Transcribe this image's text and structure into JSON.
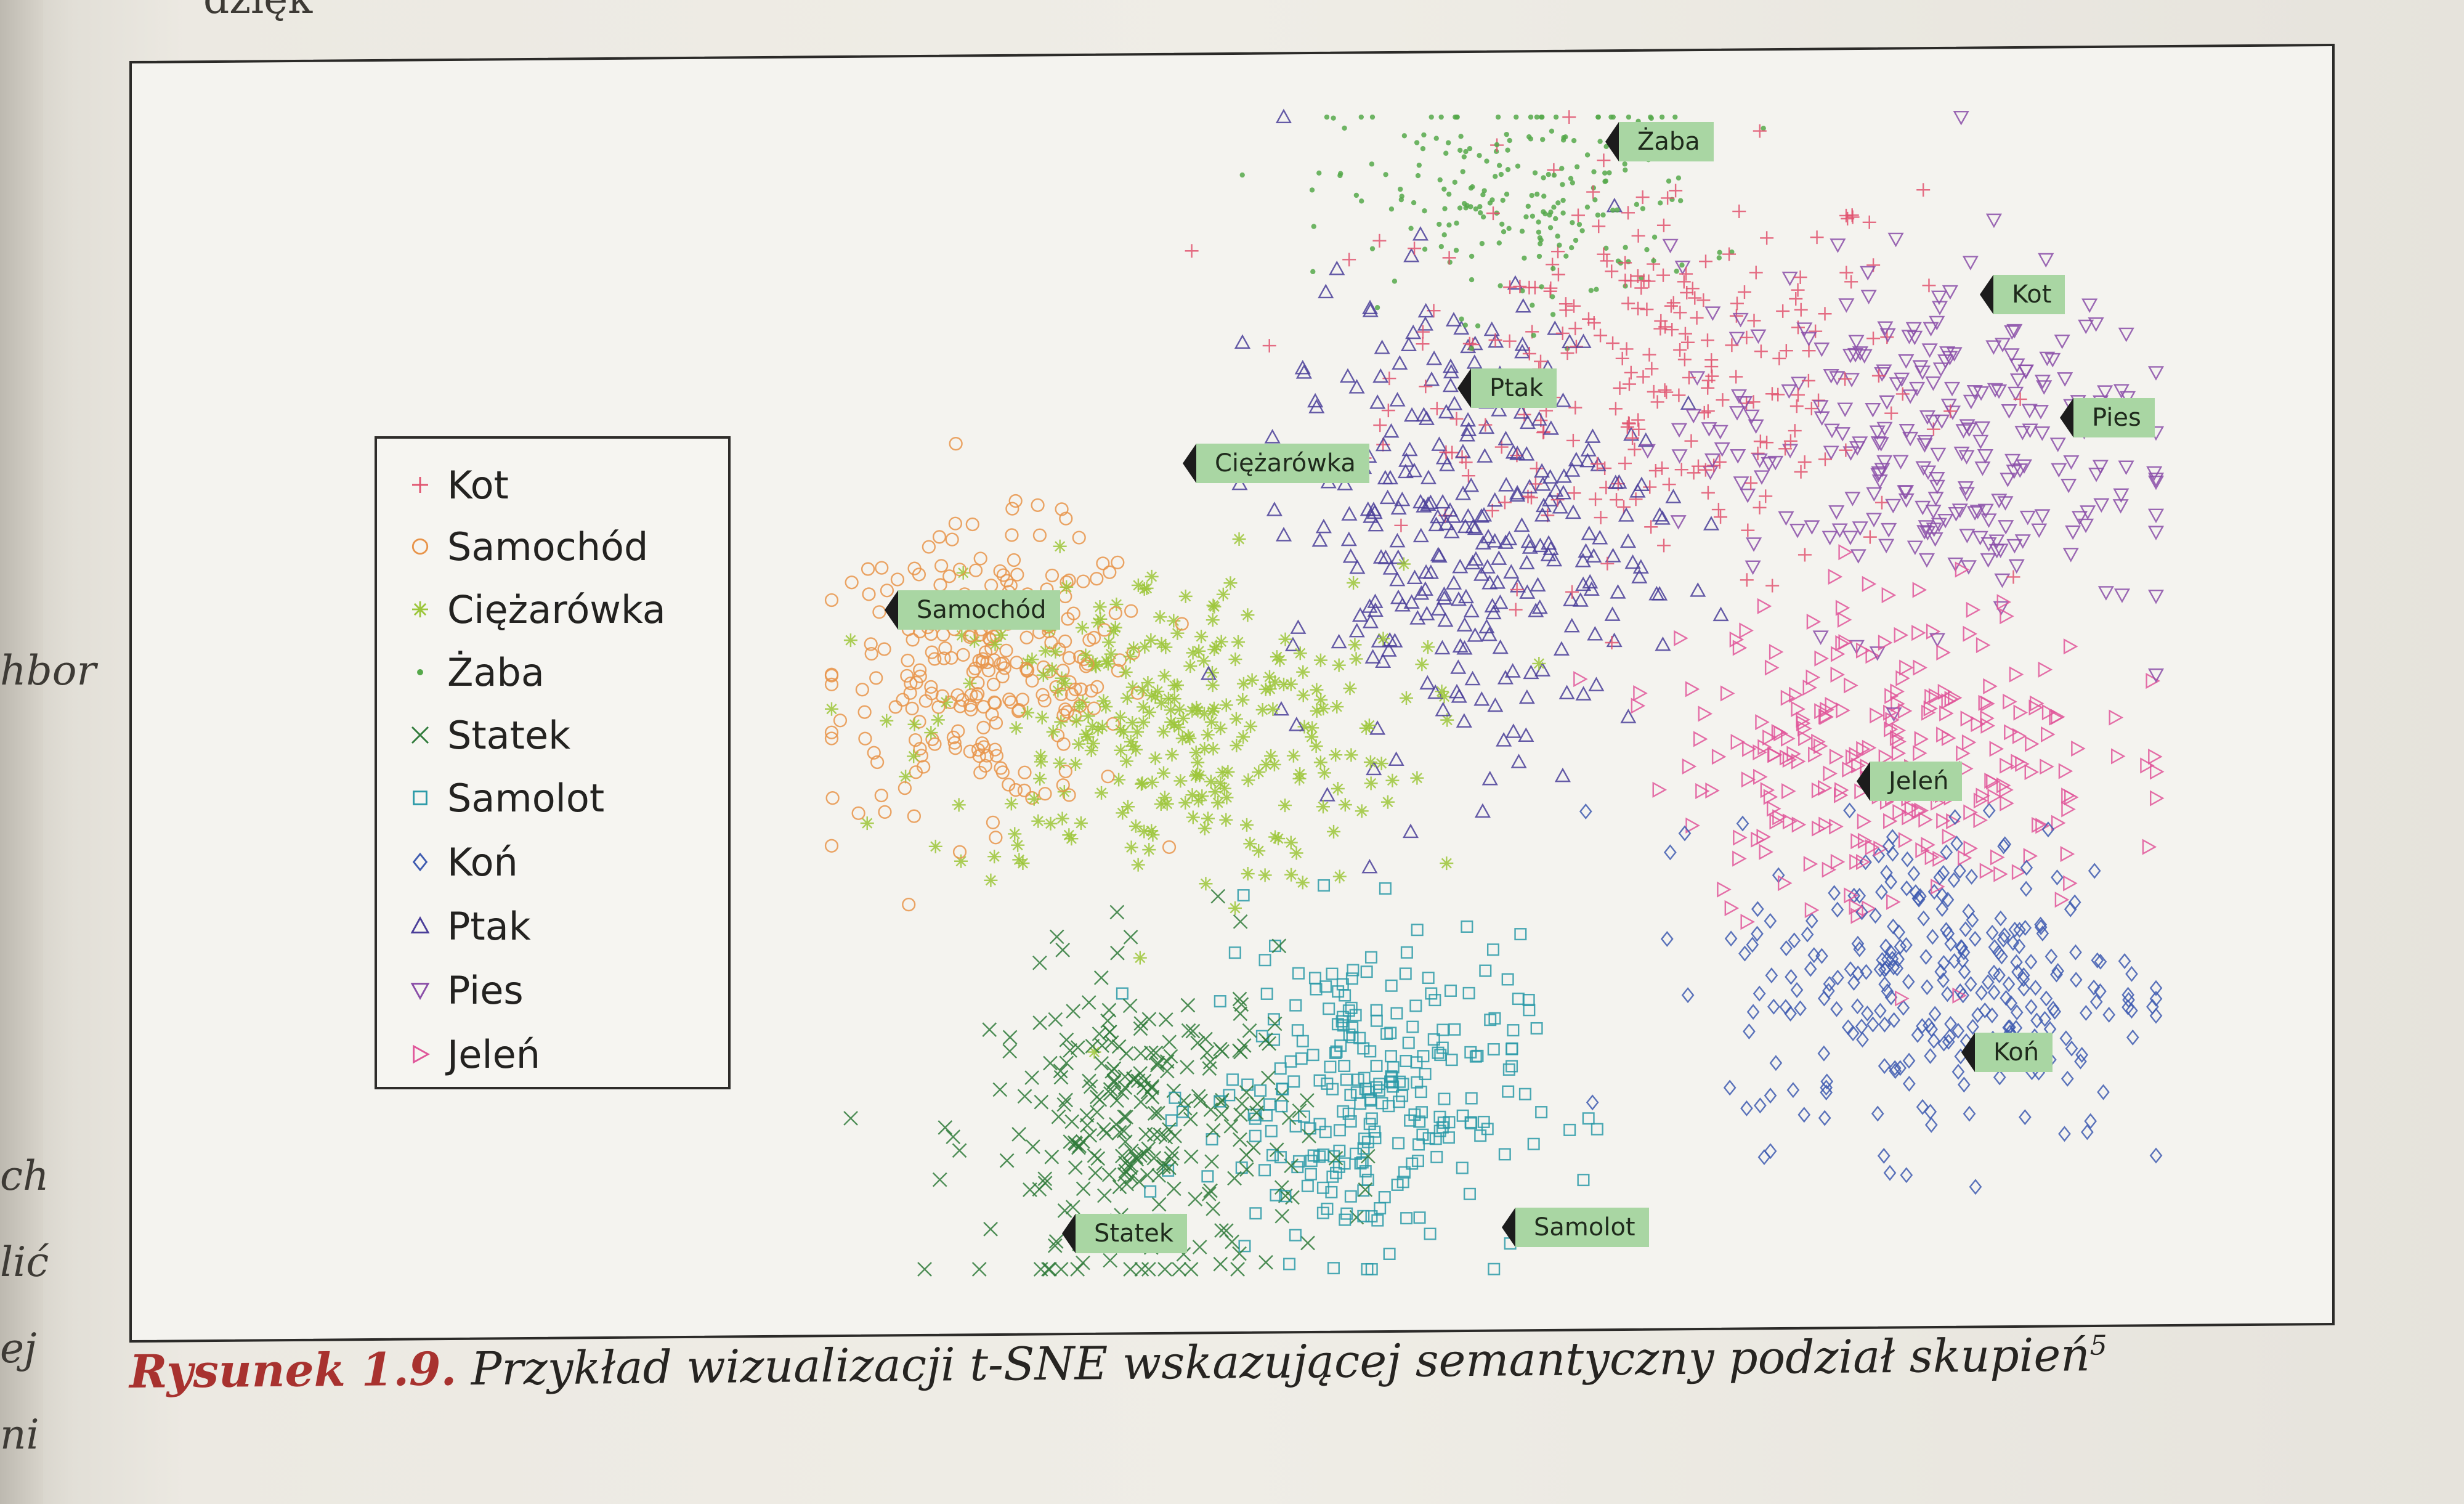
{
  "page": {
    "top_fragment": "dzięk",
    "margin_texts": [
      "hbor",
      "ch",
      "lić",
      "ej",
      "ni"
    ]
  },
  "legend": {
    "items": [
      {
        "label": "Kot",
        "marker": "plus",
        "color": "#e0526e"
      },
      {
        "label": "Samochód",
        "marker": "circle",
        "color": "#e8944a"
      },
      {
        "label": "Ciężarówka",
        "marker": "asterisk",
        "color": "#9cc63a"
      },
      {
        "label": "Żaba",
        "marker": "dot",
        "color": "#55a84a"
      },
      {
        "label": "Statek",
        "marker": "x",
        "color": "#2f7a3a"
      },
      {
        "label": "Samolot",
        "marker": "square",
        "color": "#2b9aa8"
      },
      {
        "label": "Koń",
        "marker": "diamond",
        "color": "#3e5bb0"
      },
      {
        "label": "Ptak",
        "marker": "triangle-up",
        "color": "#4a3e99"
      },
      {
        "label": "Pies",
        "marker": "triangle-down",
        "color": "#8a4ea8"
      },
      {
        "label": "Jeleń",
        "marker": "triangle-right",
        "color": "#e0569a"
      }
    ]
  },
  "chart_data": {
    "type": "scatter",
    "title": "",
    "xlabel": "",
    "ylabel": "",
    "grid": false,
    "legend_position": "left",
    "series": [
      {
        "name": "Kot",
        "marker": "plus",
        "color": "#e0526e",
        "cluster_center": [
          0.62,
          0.78
        ],
        "spread": [
          0.1,
          0.09
        ],
        "n": 260
      },
      {
        "name": "Samochód",
        "marker": "circle",
        "color": "#e8944a",
        "cluster_center": [
          0.12,
          0.52
        ],
        "spread": [
          0.06,
          0.06
        ],
        "n": 260
      },
      {
        "name": "Ciężarówka",
        "marker": "asterisk",
        "color": "#9cc63a",
        "cluster_center": [
          0.25,
          0.47
        ],
        "spread": [
          0.09,
          0.07
        ],
        "n": 300
      },
      {
        "name": "Żaba",
        "marker": "dot",
        "color": "#55a84a",
        "cluster_center": [
          0.52,
          0.93
        ],
        "spread": [
          0.07,
          0.05
        ],
        "n": 220
      },
      {
        "name": "Statek",
        "marker": "x",
        "color": "#2f7a3a",
        "cluster_center": [
          0.24,
          0.12
        ],
        "spread": [
          0.06,
          0.07
        ],
        "n": 260
      },
      {
        "name": "Samolot",
        "marker": "square",
        "color": "#2b9aa8",
        "cluster_center": [
          0.4,
          0.15
        ],
        "spread": [
          0.06,
          0.07
        ],
        "n": 260
      },
      {
        "name": "Koń",
        "marker": "diamond",
        "color": "#3e5bb0",
        "cluster_center": [
          0.84,
          0.25
        ],
        "spread": [
          0.08,
          0.07
        ],
        "n": 280
      },
      {
        "name": "Ptak",
        "marker": "triangle-up",
        "color": "#4a3e99",
        "cluster_center": [
          0.48,
          0.65
        ],
        "spread": [
          0.07,
          0.1
        ],
        "n": 300
      },
      {
        "name": "Pies",
        "marker": "triangle-down",
        "color": "#8a4ea8",
        "cluster_center": [
          0.82,
          0.72
        ],
        "spread": [
          0.09,
          0.08
        ],
        "n": 260
      },
      {
        "name": "Jeleń",
        "marker": "triangle-right",
        "color": "#e0569a",
        "cluster_center": [
          0.8,
          0.45
        ],
        "spread": [
          0.08,
          0.07
        ],
        "n": 260
      }
    ],
    "cluster_labels": [
      {
        "label": "Żaba",
        "series": "Żaba"
      },
      {
        "label": "Kot",
        "series": "Kot"
      },
      {
        "label": "Ptak",
        "series": "Ptak"
      },
      {
        "label": "Pies",
        "series": "Pies"
      },
      {
        "label": "Ciężarówka",
        "series": "Ciężarówka"
      },
      {
        "label": "Samochód",
        "series": "Samochód"
      },
      {
        "label": "Jeleń",
        "series": "Jeleń"
      },
      {
        "label": "Koń",
        "series": "Koń"
      },
      {
        "label": "Statek",
        "series": "Statek"
      },
      {
        "label": "Samolot",
        "series": "Samolot"
      }
    ]
  },
  "caption": {
    "number": "Rysunek 1.9.",
    "text": "Przykład wizualizacji t-SNE wskazującej semantyczny podział skupień",
    "footnote": "5"
  }
}
